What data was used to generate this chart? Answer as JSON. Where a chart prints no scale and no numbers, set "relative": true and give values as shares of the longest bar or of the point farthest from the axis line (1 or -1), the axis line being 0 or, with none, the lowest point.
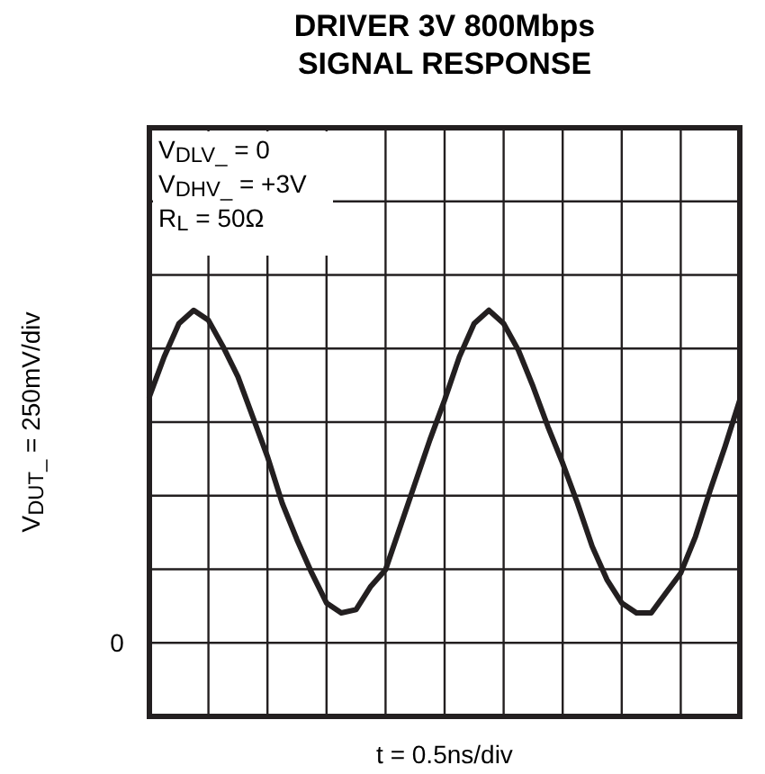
{
  "chart_data": {
    "type": "line",
    "title": "DRIVER 3V 800Mbps\nSIGNAL RESPONSE",
    "xlabel": "t = 0.5ns/div",
    "ylabel": "V$_{DUT_}$ = 250mV/div",
    "annotations": [
      "V$_{DLV_}$ = 0",
      "V$_{DHV_}$ = +3V",
      "R$_{L}$ = 50Ω",
      "0"
    ],
    "relative": true,
    "categories": [
      null,
      null,
      null,
      null,
      null,
      null,
      null,
      null,
      null,
      null,
      null,
      null,
      null,
      null,
      null,
      null,
      null,
      null,
      null,
      null,
      null,
      null,
      null,
      null,
      null,
      null,
      null,
      null,
      null,
      null,
      null,
      null,
      null,
      null,
      null,
      null,
      null,
      null,
      null,
      null,
      null
    ],
    "grid": true,
    "line_style": "solid",
    "series": [
      {
        "color": "#231f20",
        "values": [
          0.74,
          0.86,
          0.96,
          1.0,
          0.97,
          0.89,
          0.8,
          0.68,
          0.56,
          0.42,
          0.31,
          0.21,
          0.12,
          0.09,
          0.1,
          0.17,
          0.22,
          0.35,
          0.48,
          0.61,
          0.73,
          0.86,
          0.96,
          1.0,
          0.96,
          0.88,
          0.77,
          0.65,
          0.54,
          0.42,
          0.29,
          0.19,
          0.12,
          0.09,
          0.09,
          0.15,
          0.21,
          0.32,
          0.46,
          0.59,
          0.73
        ]
      }
    ]
  }
}
